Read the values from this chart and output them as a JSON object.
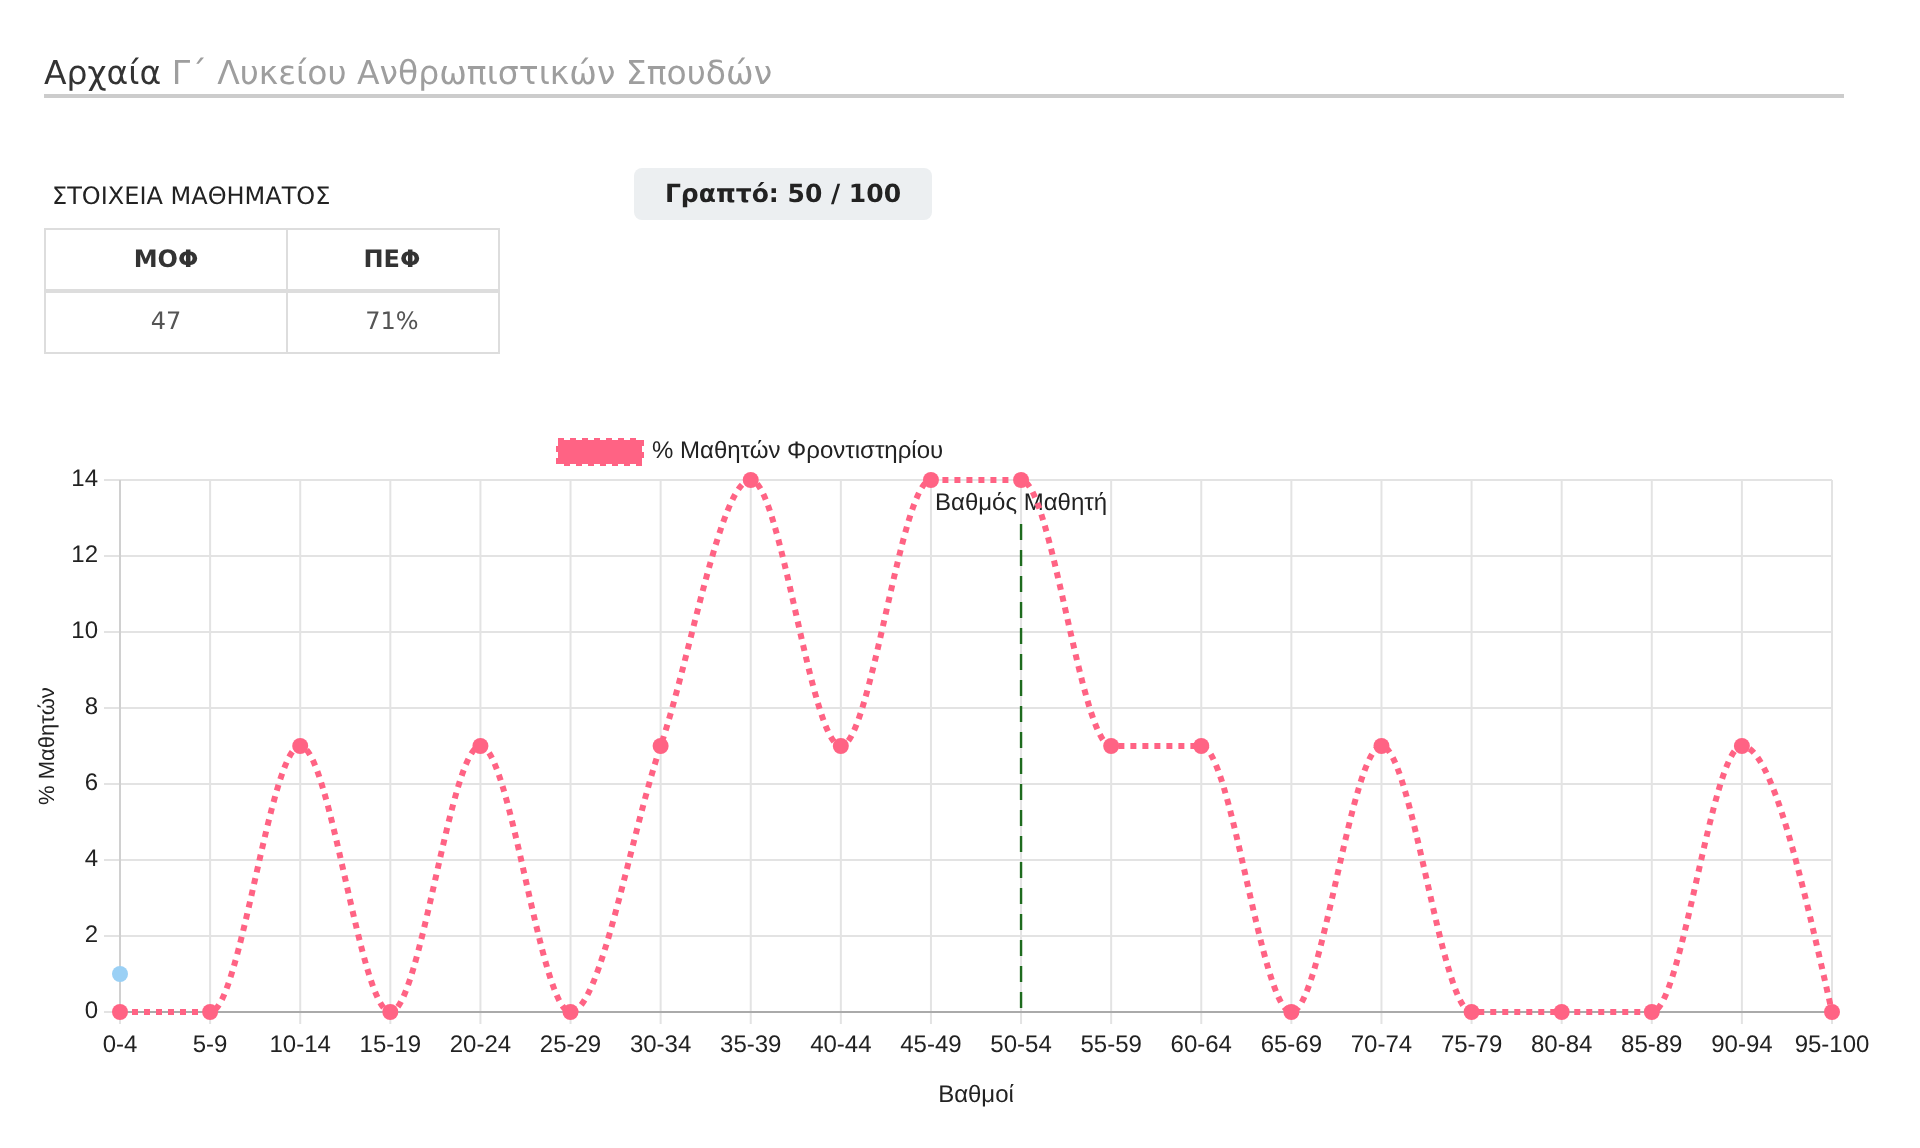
{
  "chart_data": {
    "type": "line",
    "title": "Αρχαία Γ΄ Λυκείου Ανθρωπιστικών Σπουδών",
    "annotations": [
      "ΣΤΟΙΧΕΙΑ ΜΑΘΗΜΑΤΟΣ",
      "ΜΟΦ",
      "ΠΕΦ",
      "47",
      "71%",
      "Γραπτό: 50 / 100"
    ],
    "xlabel": "Βαθμοί",
    "ylabel": "% Μαθητών",
    "categories": [
      "0-4",
      "5-9",
      "10-14",
      "15-19",
      "20-24",
      "25-29",
      "30-34",
      "35-39",
      "40-44",
      "45-49",
      "50-54",
      "55-59",
      "60-64",
      "65-69",
      "70-74",
      "75-79",
      "80-84",
      "85-89",
      "90-94",
      "95-100"
    ],
    "series": [
      {
        "name": "% Μαθητών Φροντιστηρίου",
        "color": "#ff6384",
        "values": [
          0,
          0,
          7,
          0,
          7,
          0,
          7,
          14,
          7,
          14,
          14,
          7,
          7,
          0,
          7,
          0,
          0,
          0,
          7,
          0
        ]
      },
      {
        "type": "scatter",
        "color": "#9ad0f5",
        "values": [
          1,
          null,
          null,
          null,
          null,
          null,
          null,
          null,
          null,
          null,
          null,
          null,
          null,
          null,
          null,
          null,
          null,
          null,
          null,
          null
        ]
      }
    ],
    "ylim": [
      0,
      14
    ],
    "yticks": [
      0,
      2,
      4,
      6,
      8,
      10,
      12,
      14
    ],
    "grid": true,
    "legend": "top",
    "marker": "circle",
    "line_style": "dotted",
    "ref_lines": [
      {
        "axis": "x",
        "value": "50-54",
        "label": "Βαθμός Μαθητή",
        "color": "#1e6b1e",
        "line_style": "dashed"
      }
    ]
  }
}
